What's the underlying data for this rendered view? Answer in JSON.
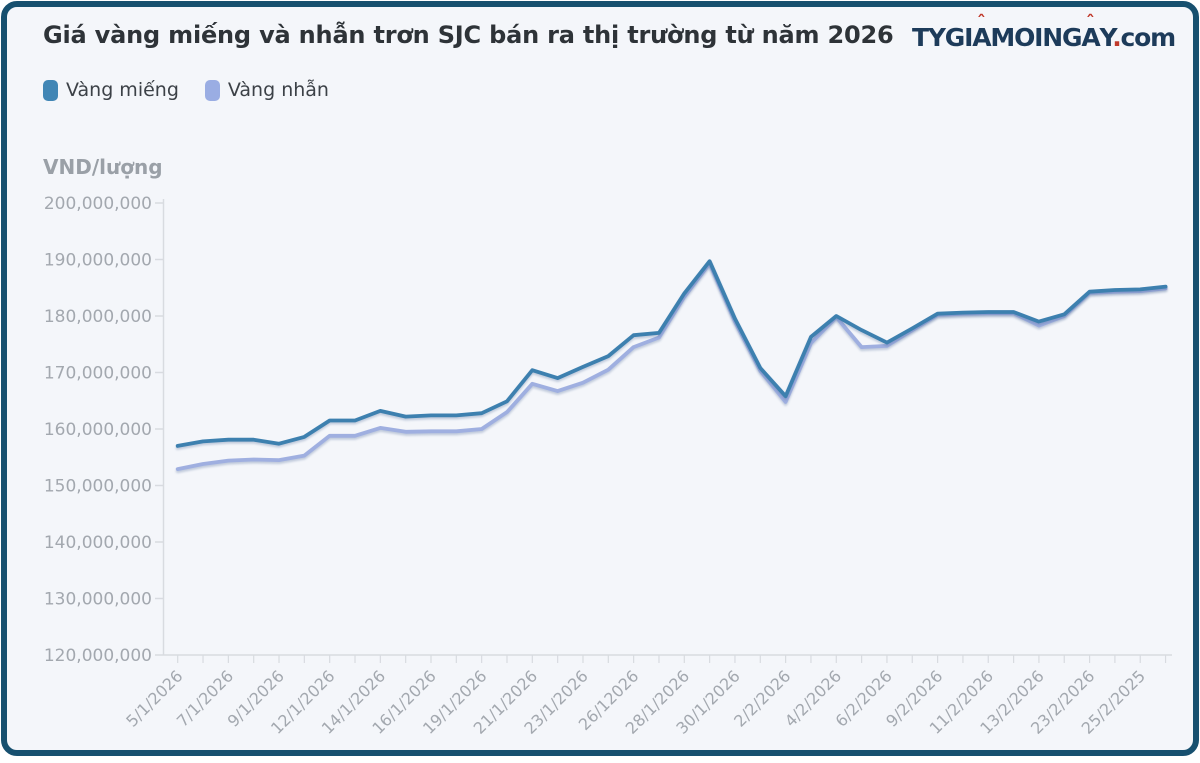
{
  "header": {
    "title": "Giá vàng miếng và nhẫn trơn SJC bán ra thị trường từ năm 2026",
    "logo": {
      "text": "TYGIAMOINGAY",
      "accent_indices": [
        4,
        10
      ],
      "accent_mark": "ˆ",
      "dot": ".",
      "suffix": "com",
      "text_color": "#1d3b5a",
      "accent_color": "#c0392b"
    }
  },
  "legend": [
    {
      "label": "Vàng miếng",
      "color": "#4186b5"
    },
    {
      "label": "Vàng nhẫn",
      "color": "#9aade3"
    }
  ],
  "chart_data": {
    "type": "line",
    "title": "Giá vàng miếng và nhẫn trơn SJC bán ra thị trường từ năm 2026",
    "ylabel": "VND/lượng",
    "xlabel": "",
    "grid": "off",
    "legend_position": "top-left",
    "num_points": 40,
    "x_label_every": 2,
    "x_labels": [
      "5/1/2026",
      "7/1/2026",
      "9/1/2026",
      "12/1/2026",
      "14/1/2026",
      "16/1/2026",
      "19/1/2026",
      "21/1/2026",
      "23/1/2026",
      "26/12026",
      "28/1/2026",
      "30/1/2026",
      "2/2/2026",
      "4/2/2026",
      "6/2/2026",
      "9/2/2026",
      "11/2/2026",
      "13/2/2026",
      "23/2/2026",
      "25/2/2025"
    ],
    "ylim": [
      120000000,
      200000000
    ],
    "y_ticks": [
      {
        "value": 200000000,
        "label": "200,000,000"
      },
      {
        "value": 190000000,
        "label": "190,000,000"
      },
      {
        "value": 180000000,
        "label": "180,000,000"
      },
      {
        "value": 170000000,
        "label": "170,000,000"
      },
      {
        "value": 160000000,
        "label": "160,000,000"
      },
      {
        "value": 150000000,
        "label": "150,000,000"
      },
      {
        "value": 140000000,
        "label": "140,000,000"
      },
      {
        "value": 130000000,
        "label": "130,000,000"
      },
      {
        "value": 120000000,
        "label": "120,000,000"
      }
    ],
    "series": [
      {
        "name": "Vàng miếng",
        "color": "#3d80af",
        "values": [
          157000000,
          157800000,
          158100000,
          158100000,
          157400000,
          158600000,
          161500000,
          161500000,
          163200000,
          162200000,
          162400000,
          162400000,
          162800000,
          164900000,
          170400000,
          169000000,
          171000000,
          172900000,
          176600000,
          177000000,
          184000000,
          189700000,
          179500000,
          170800000,
          165800000,
          176300000,
          180000000,
          177500000,
          175300000,
          177800000,
          180400000,
          180600000,
          180700000,
          180700000,
          179000000,
          180300000,
          184300000,
          184600000,
          184700000,
          185200000
        ]
      },
      {
        "name": "Vàng nhẫn",
        "color": "#9fafe0",
        "values": [
          152900000,
          153800000,
          154400000,
          154600000,
          154500000,
          155300000,
          158800000,
          158800000,
          160200000,
          159500000,
          159600000,
          159600000,
          160000000,
          163000000,
          168000000,
          166700000,
          168200000,
          170500000,
          174500000,
          176200000,
          183400000,
          189300000,
          179000000,
          170300000,
          164800000,
          175200000,
          179800000,
          174500000,
          174700000,
          177500000,
          180200000,
          180400000,
          180500000,
          180500000,
          178300000,
          180000000,
          184100000,
          184300000,
          184400000,
          184900000
        ]
      }
    ]
  }
}
